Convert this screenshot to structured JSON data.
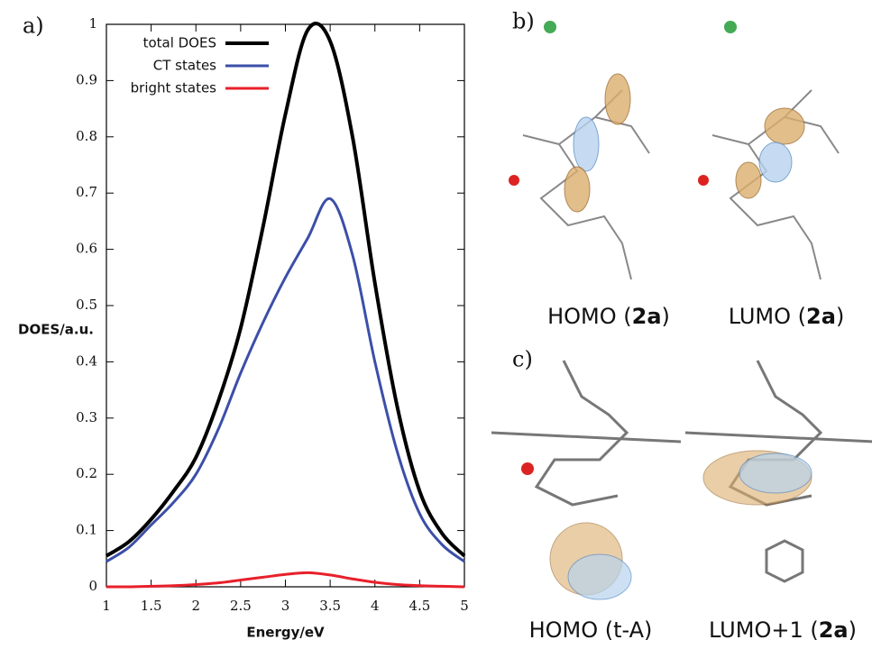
{
  "chart_data": {
    "type": "line",
    "panel_labels": [
      "a)",
      "b)",
      "c)"
    ],
    "xlabel": "Energy/eV",
    "ylabel": "DOES/a.u.",
    "x": [
      1,
      1.25,
      1.5,
      1.75,
      2,
      2.25,
      2.5,
      2.75,
      3,
      3.25,
      3.5,
      3.75,
      4,
      4.25,
      4.5,
      4.75,
      5
    ],
    "series": [
      {
        "name": "total DOES",
        "color": "#000000",
        "values": [
          0.055,
          0.08,
          0.12,
          0.17,
          0.23,
          0.33,
          0.46,
          0.64,
          0.84,
          0.99,
          0.97,
          0.8,
          0.54,
          0.32,
          0.17,
          0.095,
          0.055
        ]
      },
      {
        "name": "CT states",
        "color": "#3b4fa8",
        "values": [
          0.045,
          0.07,
          0.11,
          0.15,
          0.2,
          0.28,
          0.38,
          0.47,
          0.55,
          0.62,
          0.69,
          0.59,
          0.4,
          0.24,
          0.13,
          0.075,
          0.045
        ]
      },
      {
        "name": "bright states",
        "color": "#e8202a",
        "values": [
          0,
          0,
          0.001,
          0.002,
          0.004,
          0.007,
          0.012,
          0.017,
          0.022,
          0.025,
          0.021,
          0.014,
          0.008,
          0.004,
          0.002,
          0.001,
          0
        ]
      }
    ],
    "xlim": [
      1,
      5
    ],
    "xticks": [
      1,
      1.5,
      2,
      2.5,
      3,
      3.5,
      4,
      4.5,
      5
    ],
    "ylim": [
      0,
      1
    ],
    "yticks": [
      0,
      0.1,
      0.2,
      0.3,
      0.4,
      0.5,
      0.6,
      0.7,
      0.8,
      0.9,
      1
    ],
    "legend": "upper-left",
    "captions": [
      {
        "prefix": "HOMO (",
        "bold": "2a",
        "suffix": ")"
      },
      {
        "prefix": "LUMO (",
        "bold": "2a",
        "suffix": ")"
      },
      {
        "prefix": "HOMO (t-A)",
        "bold": "",
        "suffix": ""
      },
      {
        "prefix": "LUMO+1 (",
        "bold": "2a",
        "suffix": ")"
      }
    ]
  }
}
